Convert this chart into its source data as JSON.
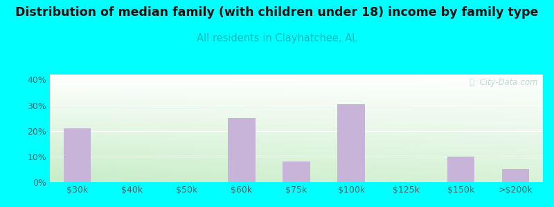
{
  "title": "Distribution of median family (with children under 18) income by family type",
  "subtitle": "All residents in Clayhatchee, AL",
  "categories": [
    "$30k",
    "$40k",
    "$50k",
    "$60k",
    "$75k",
    "$100k",
    "$125k",
    "$150k",
    ">$200k"
  ],
  "values": [
    21,
    0,
    0,
    25,
    8,
    30.5,
    0,
    10,
    5
  ],
  "bar_color": "#c8b4d8",
  "title_fontsize": 12.5,
  "subtitle_fontsize": 10.5,
  "subtitle_color": "#00bbbb",
  "tick_color": "#336666",
  "background_outer": "#00ffff",
  "ylim": [
    0,
    42
  ],
  "yticks": [
    0,
    10,
    20,
    30,
    40
  ],
  "ytick_labels": [
    "0%",
    "10%",
    "20%",
    "30%",
    "40%"
  ],
  "watermark": "ⓘ  City-Data.com"
}
